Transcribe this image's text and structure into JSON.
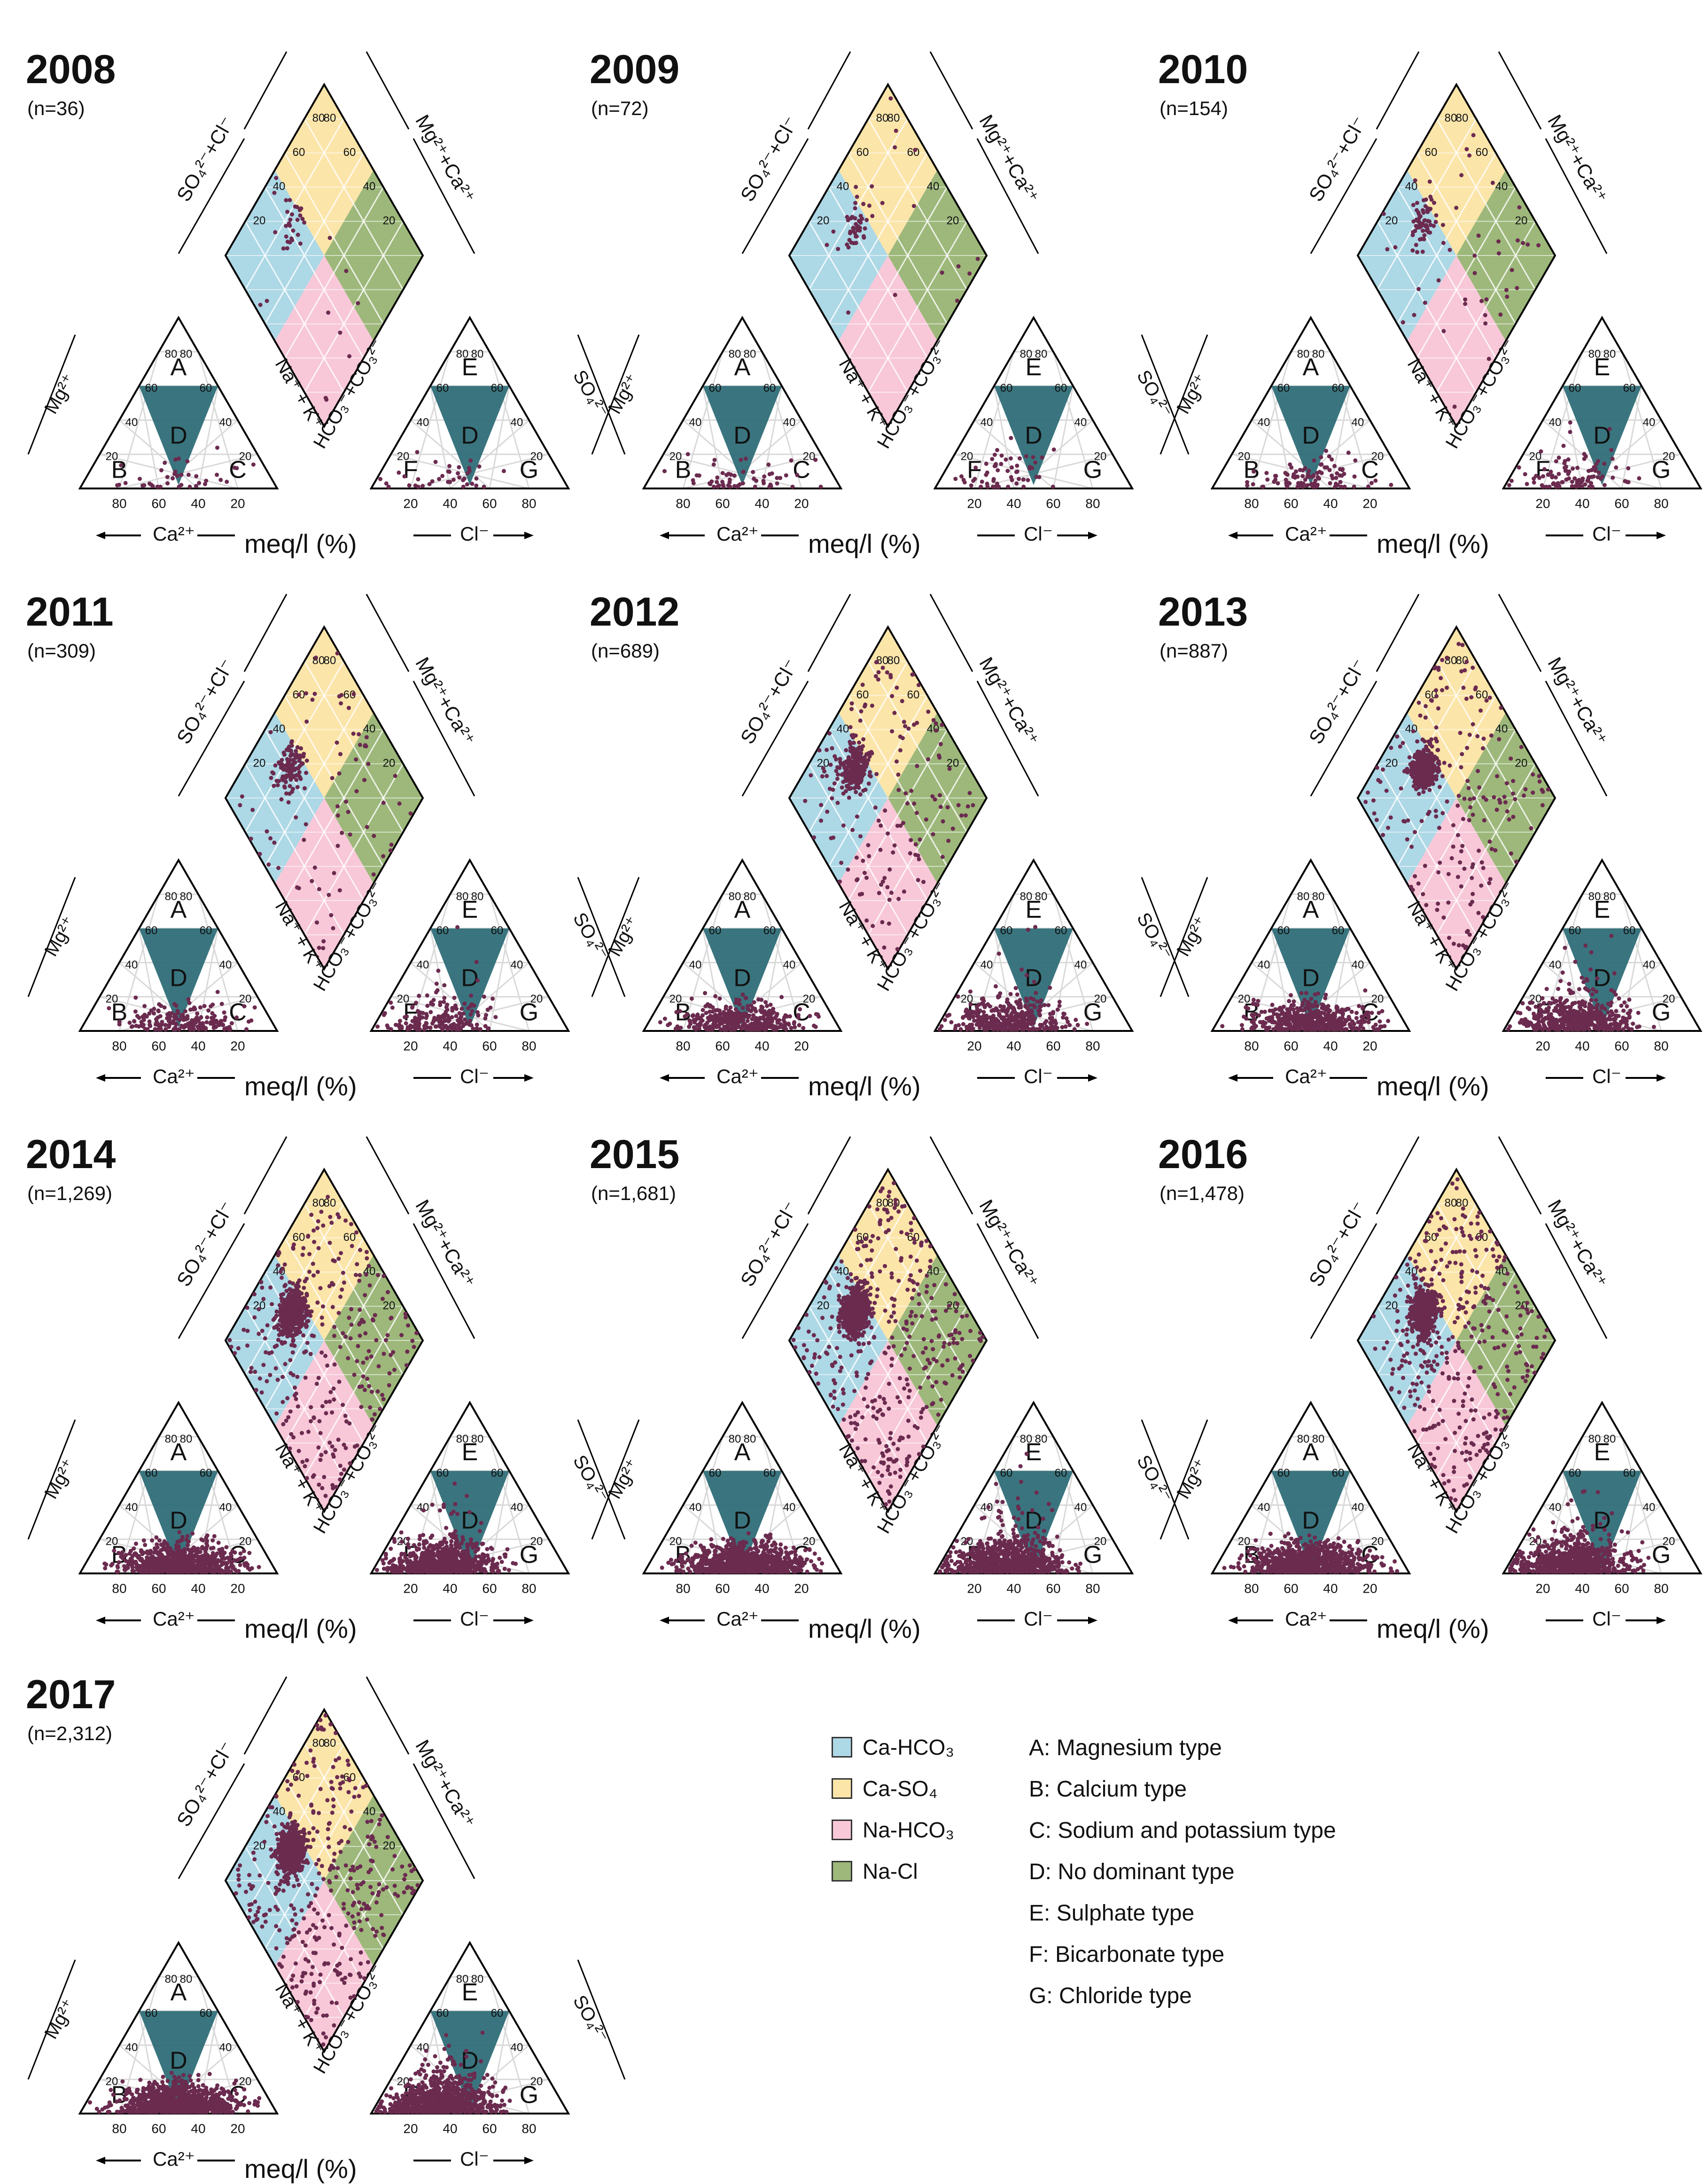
{
  "colors": {
    "ca_hco3": "#ADD8E6",
    "ca_so4": "#FCE5A9",
    "na_hco3": "#F8C8D8",
    "na_cl": "#9DB87A",
    "central_d": "#2F6E78",
    "points": "#6B2B4F",
    "outline": "#000000",
    "grid": "#d9d9d9"
  },
  "shared_labels": {
    "meq": "meq/l (%)",
    "ca_axis": "Ca²⁺",
    "cl_axis": "Cl⁻",
    "mg_axis": "Mg²⁺",
    "so4_axis": "SO₄²⁻",
    "nak_axis": "Na⁺ + K⁺",
    "hco3_axis": "HCO₃⁻+CO₃²⁻",
    "so4cl_axis": "SO₄²⁻+Cl⁻",
    "mgca_axis": "Mg²⁺+Ca²⁺",
    "zone_a": "A",
    "zone_b": "B",
    "zone_c": "C",
    "zone_d": "D",
    "zone_e": "E",
    "zone_f": "F",
    "zone_g": "G",
    "ticks_rev": [
      "80",
      "60",
      "40",
      "20"
    ],
    "ticks_fwd": [
      "20",
      "40",
      "60",
      "80"
    ]
  },
  "chart_data": [
    {
      "type": "scatter",
      "subtype": "piper",
      "title": "2008",
      "n_label": "(n=36)",
      "n": 36
    },
    {
      "type": "scatter",
      "subtype": "piper",
      "title": "2009",
      "n_label": "(n=72)",
      "n": 72
    },
    {
      "type": "scatter",
      "subtype": "piper",
      "title": "2010",
      "n_label": "(n=154)",
      "n": 154
    },
    {
      "type": "scatter",
      "subtype": "piper",
      "title": "2011",
      "n_label": "(n=309)",
      "n": 309
    },
    {
      "type": "scatter",
      "subtype": "piper",
      "title": "2012",
      "n_label": "(n=689)",
      "n": 689
    },
    {
      "type": "scatter",
      "subtype": "piper",
      "title": "2013",
      "n_label": "(n=887)",
      "n": 887
    },
    {
      "type": "scatter",
      "subtype": "piper",
      "title": "2014",
      "n_label": "(n=1,269)",
      "n": 1269
    },
    {
      "type": "scatter",
      "subtype": "piper",
      "title": "2015",
      "n_label": "(n=1,681)",
      "n": 1681
    },
    {
      "type": "scatter",
      "subtype": "piper",
      "title": "2016",
      "n_label": "(n=1,478)",
      "n": 1478
    },
    {
      "type": "scatter",
      "subtype": "piper",
      "title": "2017",
      "n_label": "(n=2,312)",
      "n": 2312
    }
  ],
  "legend": {
    "water_types": [
      {
        "label": "Ca-HCO₃",
        "color_key": "ca_hco3"
      },
      {
        "label": "Ca-SO₄",
        "color_key": "ca_so4"
      },
      {
        "label": "Na-HCO₃",
        "color_key": "na_hco3"
      },
      {
        "label": "Na-Cl",
        "color_key": "na_cl"
      }
    ],
    "zone_types": [
      "A: Magnesium type",
      "B: Calcium type",
      "C: Sodium and potassium type",
      "D: No dominant type",
      "E: Sulphate type",
      "F: Bicarbonate type",
      "G: Chloride type"
    ]
  }
}
